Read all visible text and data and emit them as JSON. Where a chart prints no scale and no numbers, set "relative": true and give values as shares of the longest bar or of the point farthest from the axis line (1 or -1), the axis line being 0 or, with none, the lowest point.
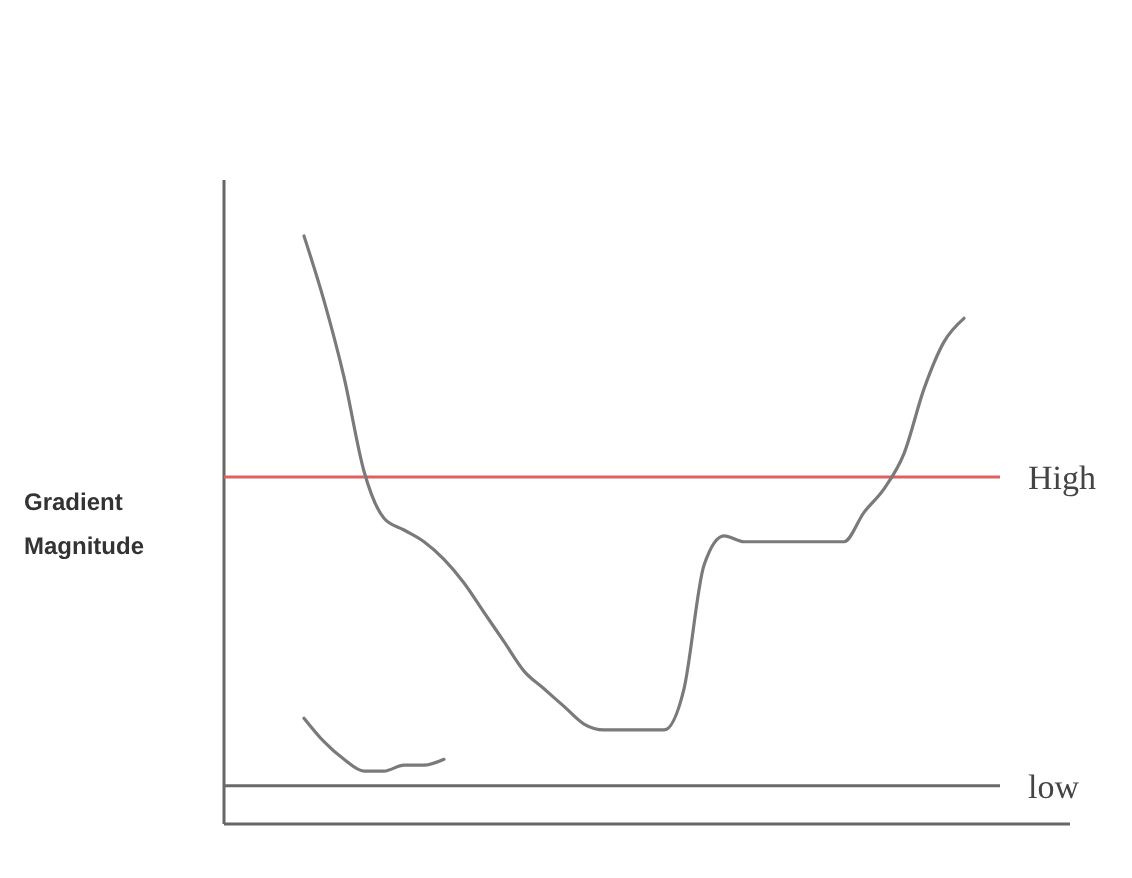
{
  "chart_data": {
    "type": "line",
    "relative": true,
    "ylabel": "Gradient Magnitude",
    "categories": [
      null,
      null,
      null,
      null,
      null,
      null,
      null,
      null,
      null,
      null,
      null,
      null,
      null,
      null,
      null,
      null,
      null,
      null,
      null,
      null,
      null,
      null,
      null,
      null,
      null,
      null,
      null,
      null,
      null,
      null,
      null,
      null,
      null,
      null,
      null,
      null,
      null,
      null,
      null,
      null,
      null,
      null,
      null
    ],
    "series": [
      {
        "color": "#7a7a7a",
        "values": [
          null,
          null,
          null,
          null,
          1.0,
          0.89,
          0.76,
          0.6,
          0.52,
          0.5,
          0.48,
          0.45,
          0.41,
          0.36,
          0.31,
          0.26,
          0.23,
          0.2,
          0.17,
          0.16,
          0.16,
          0.16,
          0.16,
          0.23,
          0.44,
          0.49,
          0.48,
          0.48,
          0.48,
          0.48,
          0.48,
          0.48,
          0.53,
          0.57,
          0.63,
          0.74,
          0.82,
          0.86,
          null,
          null,
          null,
          null,
          null
        ]
      },
      {
        "color": "#7a7a7a",
        "values": [
          null,
          null,
          null,
          null,
          0.18,
          0.14,
          0.11,
          0.09,
          0.09,
          0.1,
          0.1,
          0.11,
          null,
          null,
          null,
          null,
          null,
          null,
          null,
          null,
          null,
          null,
          null,
          null,
          null,
          null,
          null,
          null,
          null,
          null,
          null,
          null,
          null,
          null,
          null,
          null,
          null,
          null,
          null,
          null,
          null,
          null,
          null
        ]
      }
    ],
    "ref_lines": [
      {
        "axis": "y",
        "value": 0.59,
        "label": "High",
        "color": "#e06060"
      },
      {
        "axis": "y",
        "value": 0.065,
        "label": "low",
        "color": "#6a6a6a"
      }
    ],
    "line_style": "solid",
    "marker": "none"
  }
}
